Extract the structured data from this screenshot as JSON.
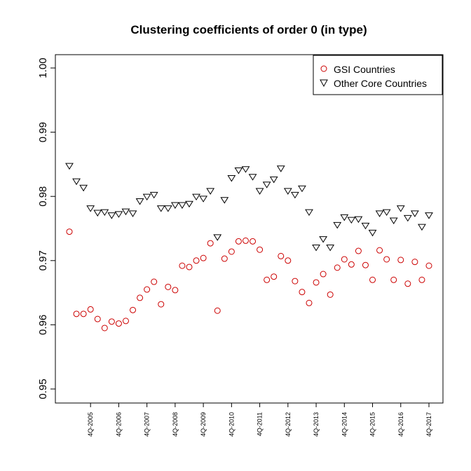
{
  "chart_data": {
    "type": "scatter",
    "title": "Clustering coefficients of order 0 (in type)",
    "xlabel": "",
    "ylabel": "",
    "ylim": [
      0.95,
      1.0
    ],
    "yticks": [
      0.95,
      0.96,
      0.97,
      0.98,
      0.99,
      1.0
    ],
    "ytick_labels": [
      "0.95",
      "0.96",
      "0.97",
      "0.98",
      "0.99",
      "1.00"
    ],
    "xtick_positions": [
      4,
      8,
      12,
      16,
      20,
      24,
      28,
      32,
      36,
      40,
      44,
      48,
      52
    ],
    "xtick_labels": [
      "4Q-2005",
      "4Q-2006",
      "4Q-2007",
      "4Q-2008",
      "4Q-2009",
      "4Q-2010",
      "4Q-2011",
      "4Q-2012",
      "4Q-2013",
      "4Q-2014",
      "4Q-2015",
      "4Q-2016",
      "4Q-2017"
    ],
    "legend_position": "top-right",
    "series": [
      {
        "name": "GSI Countries",
        "marker": "circle",
        "color": "#cc0000",
        "x": [
          1,
          2,
          3,
          4,
          5,
          6,
          7,
          8,
          9,
          10,
          11,
          12,
          13,
          14,
          15,
          16,
          17,
          18,
          19,
          20,
          21,
          22,
          23,
          24,
          25,
          26,
          27,
          28,
          29,
          30,
          31,
          32,
          33,
          34,
          35,
          36,
          37,
          38,
          39,
          40,
          41,
          42,
          43,
          44,
          45,
          46,
          47,
          48,
          49,
          50,
          51,
          52
        ],
        "values": [
          0.9745,
          0.9617,
          0.9617,
          0.9624,
          0.9609,
          0.9595,
          0.9605,
          0.9602,
          0.9606,
          0.9623,
          0.9642,
          0.9655,
          0.9667,
          0.9632,
          0.9659,
          0.9654,
          0.9692,
          0.969,
          0.97,
          0.9704,
          0.9727,
          0.9622,
          0.9703,
          0.9714,
          0.973,
          0.9731,
          0.973,
          0.9717,
          0.967,
          0.9675,
          0.9707,
          0.97,
          0.9668,
          0.9651,
          0.9634,
          0.9666,
          0.9679,
          0.9647,
          0.9689,
          0.9702,
          0.9694,
          0.9715,
          0.9693,
          0.967,
          0.9716,
          0.9702,
          0.967,
          0.9701,
          0.9664,
          0.9698,
          0.967,
          0.9692
        ]
      },
      {
        "name": "Other Core Countries",
        "marker": "triangle-down",
        "color": "#000000",
        "x": [
          1,
          2,
          3,
          4,
          5,
          6,
          7,
          8,
          9,
          10,
          11,
          12,
          13,
          14,
          15,
          16,
          17,
          18,
          19,
          20,
          21,
          22,
          23,
          24,
          25,
          26,
          27,
          28,
          29,
          30,
          31,
          32,
          33,
          34,
          35,
          36,
          37,
          38,
          39,
          40,
          41,
          42,
          43,
          44,
          45,
          46,
          47,
          48,
          49,
          50,
          51,
          52
        ],
        "values": [
          0.9847,
          0.9823,
          0.9813,
          0.9781,
          0.9774,
          0.9775,
          0.977,
          0.9772,
          0.9776,
          0.9773,
          0.9792,
          0.9799,
          0.9802,
          0.9781,
          0.9781,
          0.9786,
          0.9786,
          0.9788,
          0.9799,
          0.9796,
          0.9808,
          0.9736,
          0.9794,
          0.9828,
          0.984,
          0.9842,
          0.983,
          0.9808,
          0.9818,
          0.9826,
          0.9843,
          0.9808,
          0.9802,
          0.9812,
          0.9775,
          0.972,
          0.9733,
          0.972,
          0.9755,
          0.9767,
          0.9763,
          0.9764,
          0.9754,
          0.9743,
          0.9773,
          0.9775,
          0.9762,
          0.9781,
          0.9766,
          0.9773,
          0.9752,
          0.977
        ]
      }
    ]
  }
}
